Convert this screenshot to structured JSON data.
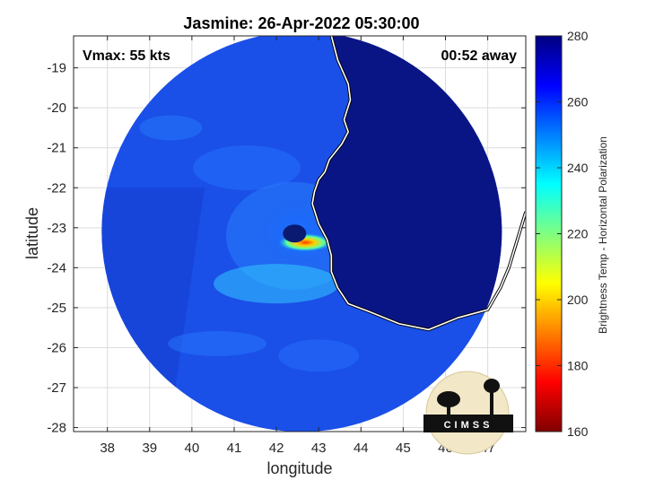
{
  "chart_data": {
    "type": "heatmap",
    "title": "Jasmine: 26-Apr-2022 05:30:00",
    "annotations": {
      "left": "Vmax: 55 kts",
      "right": "00:52 away"
    },
    "xlabel": "longitude",
    "ylabel": "latitude",
    "xlim": [
      37.2,
      47.9
    ],
    "ylim": [
      -28.1,
      -18.2
    ],
    "xticks": [
      38,
      39,
      40,
      41,
      42,
      43,
      44,
      45,
      46,
      47
    ],
    "yticks": [
      -19,
      -20,
      -21,
      -22,
      -23,
      -24,
      -25,
      -26,
      -27,
      -28
    ],
    "grid": true,
    "colorbar": {
      "label": "Brightness Temp - Horizontal Polarization",
      "min": 160,
      "max": 280,
      "ticks": [
        280,
        260,
        240,
        220,
        200,
        180,
        160
      ],
      "colormap": "jet"
    },
    "swath": {
      "center_lon": 42.6,
      "center_lat": -23.1,
      "radius_deg": 5.0
    },
    "storm_center": {
      "lon": 42.6,
      "lat": -23.1
    },
    "min_brightness_temp": 195,
    "coastline": [
      [
        43.3,
        -18.2
      ],
      [
        43.45,
        -18.8
      ],
      [
        43.7,
        -19.4
      ],
      [
        43.75,
        -19.8
      ],
      [
        43.6,
        -20.3
      ],
      [
        43.7,
        -20.6
      ],
      [
        43.55,
        -20.9
      ],
      [
        43.25,
        -21.3
      ],
      [
        43.15,
        -21.6
      ],
      [
        43.0,
        -21.8
      ],
      [
        42.9,
        -22.1
      ],
      [
        42.85,
        -22.4
      ],
      [
        43.0,
        -22.9
      ],
      [
        43.2,
        -23.3
      ],
      [
        43.3,
        -23.7
      ],
      [
        43.3,
        -24.1
      ],
      [
        43.45,
        -24.5
      ],
      [
        43.7,
        -24.9
      ],
      [
        44.2,
        -25.1
      ],
      [
        44.9,
        -25.4
      ],
      [
        45.6,
        -25.55
      ],
      [
        46.3,
        -25.25
      ],
      [
        47.0,
        -25.05
      ],
      [
        47.3,
        -24.5
      ],
      [
        47.5,
        -24.0
      ],
      [
        47.7,
        -23.3
      ],
      [
        47.9,
        -22.6
      ]
    ],
    "legend": "none"
  },
  "logo": {
    "text": "CIMSS"
  }
}
